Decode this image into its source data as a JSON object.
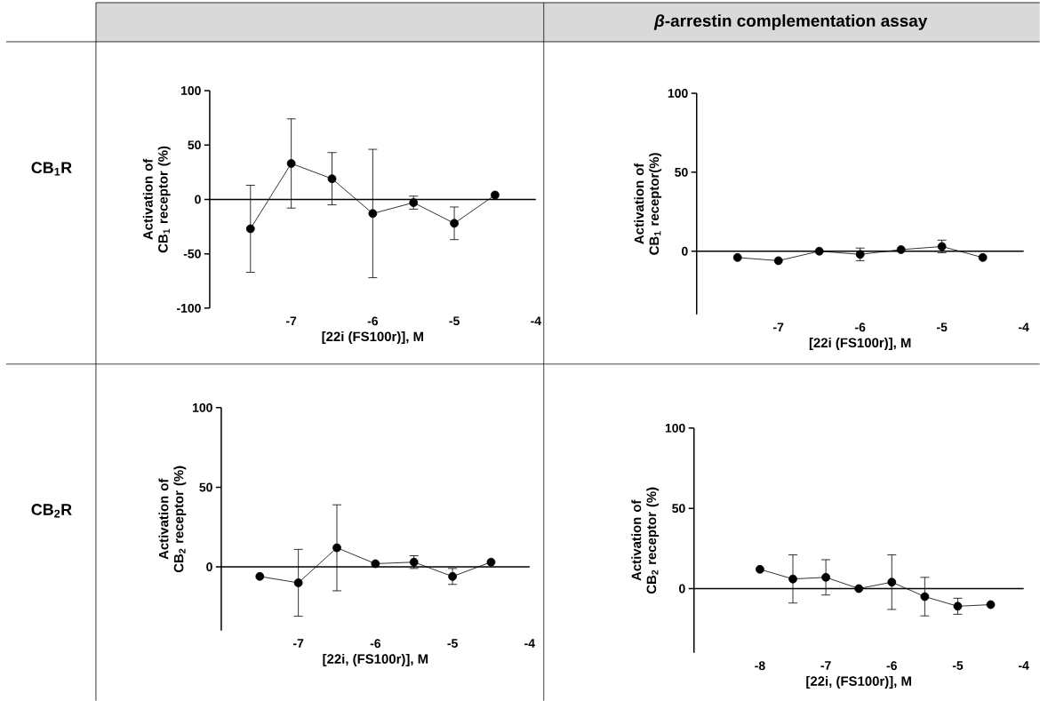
{
  "chart_data": [
    {
      "type": "line",
      "xlabel": "[22i (FS100r)], M",
      "ylabel": "Activation of CB$_{1}$ receptor (%)",
      "annotations": [
        "CB$_{1}$R"
      ],
      "color": "#000000",
      "marker": "circle",
      "line_style": "solid",
      "xlim": [
        -8,
        -4
      ],
      "ylim": [
        -100,
        100
      ],
      "xticks": [
        -7,
        -6,
        -5,
        -4
      ],
      "yticks": [
        -100,
        -50,
        0,
        50,
        100
      ],
      "x": [
        -7.5,
        -7,
        -6.5,
        -6,
        -5.5,
        -5,
        -4.5
      ],
      "values": [
        -27,
        33,
        19,
        -13,
        -3,
        -22,
        4
      ],
      "errors": [
        40,
        41,
        24,
        59,
        6,
        15,
        null
      ]
    },
    {
      "type": "line",
      "xlabel": "[22i (FS100r)], M",
      "ylabel": "Activation of CB$_{1}$ receptor(%)",
      "annotations": [
        "*β*-arrestin complementation assay"
      ],
      "color": "#000000",
      "marker": "circle",
      "line_style": "solid",
      "xlim": [
        -8,
        -4
      ],
      "ylim": [
        -40,
        100
      ],
      "xticks": [
        -7,
        -6,
        -5,
        -4
      ],
      "yticks": [
        0,
        50,
        100
      ],
      "x": [
        -7.5,
        -7,
        -6.5,
        -6,
        -5.5,
        -5,
        -4.5
      ],
      "values": [
        -4,
        -6,
        0,
        -2,
        1,
        3,
        -4
      ],
      "errors": [
        null,
        null,
        null,
        4,
        null,
        4,
        null
      ]
    },
    {
      "type": "line",
      "xlabel": "[22i, (FS100r)], M",
      "ylabel": "Activation of CB$_{2}$ receptor (%)",
      "annotations": [
        "CB$_{2}$R"
      ],
      "color": "#000000",
      "marker": "circle",
      "line_style": "solid",
      "xlim": [
        -8,
        -4
      ],
      "ylim": [
        -40,
        100
      ],
      "xticks": [
        -7,
        -6,
        -5,
        -4
      ],
      "yticks": [
        0,
        50,
        100
      ],
      "x": [
        -7.5,
        -7,
        -6.5,
        -6,
        -5.5,
        -5,
        -4.5
      ],
      "values": [
        -6,
        -10,
        12,
        2,
        3,
        -6,
        3
      ],
      "errors": [
        null,
        21,
        27,
        null,
        4,
        5,
        null
      ]
    },
    {
      "type": "line",
      "xlabel": "[22i, (FS100r)], M",
      "ylabel": "Activation of CB$_{2}$ receptor (%)",
      "color": "#000000",
      "marker": "circle",
      "line_style": "solid",
      "xlim": [
        -9,
        -4
      ],
      "ylim": [
        -40,
        100
      ],
      "xticks": [
        -8,
        -7,
        -6,
        -5,
        -4
      ],
      "yticks": [
        0,
        50,
        100
      ],
      "x": [
        -8,
        -7.5,
        -7,
        -6.5,
        -6,
        -5.5,
        -5,
        -4.5
      ],
      "values": [
        12,
        6,
        7,
        0,
        4,
        -5,
        -11,
        -10
      ],
      "errors": [
        null,
        15,
        11,
        null,
        17,
        12,
        5,
        null
      ]
    }
  ]
}
